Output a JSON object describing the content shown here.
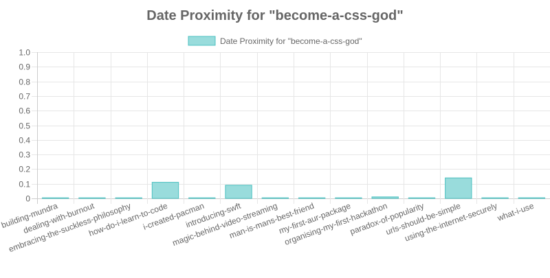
{
  "chart_data": {
    "type": "bar",
    "title": "Date Proximity for \"become-a-css-god\"",
    "legend": {
      "position": "top",
      "entries": [
        "Date Proximity for \"become-a-css-god\""
      ]
    },
    "categories": [
      "building-mundra",
      "dealing-with-burnout",
      "embracing-the-suckless-philosophy",
      "how-do-i-learn-to-code",
      "i-created-pacman",
      "introducing-swft",
      "magic-behind-video-streaming",
      "man-is-mans-best-friend",
      "my-first-aur-package",
      "organising-my-first-hackathon",
      "paradox-of-popularity",
      "urls-should-be-simple",
      "using-the-internet-securely",
      "what-i-use"
    ],
    "series": [
      {
        "name": "Date Proximity for \"become-a-css-god\"",
        "values": [
          0,
          0.002,
          0,
          0.11,
          0,
          0.09,
          0.002,
          0,
          0,
          0.01,
          0.003,
          0.14,
          0.001,
          0.004
        ]
      }
    ],
    "ylim": [
      0,
      1
    ],
    "yticks": [
      "0",
      "0.1",
      "0.2",
      "0.3",
      "0.4",
      "0.5",
      "0.6",
      "0.7",
      "0.8",
      "0.9",
      "1.0"
    ],
    "ytick_values": [
      0,
      0.1,
      0.2,
      0.3,
      0.4,
      0.5,
      0.6,
      0.7,
      0.8,
      0.9,
      1.0
    ],
    "grid": true,
    "xlabel": "",
    "ylabel": "",
    "colors": {
      "bar_fill": "#99dcdc",
      "bar_border": "#4bc0c0"
    }
  }
}
